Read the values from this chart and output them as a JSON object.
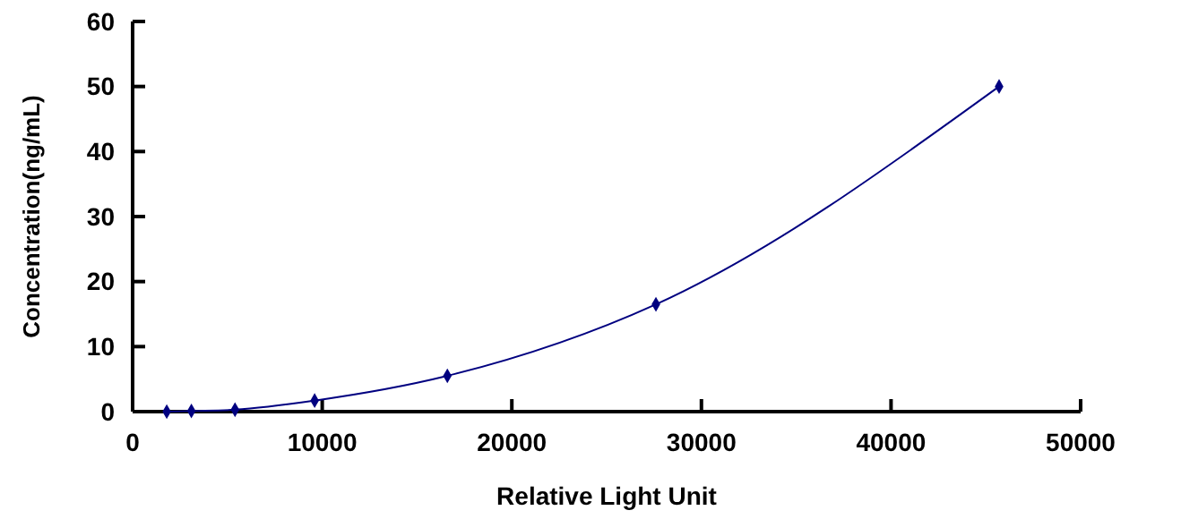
{
  "chart_data": {
    "type": "line",
    "xlabel": "Relative Light Unit",
    "ylabel": "Concentration(ng/mL)",
    "x": [
      1800,
      3100,
      5400,
      9600,
      16600,
      27600,
      45700
    ],
    "series": [
      {
        "color": "#000080",
        "values": [
          0,
          0.1,
          0.3,
          1.7,
          5.5,
          16.5,
          50
        ]
      }
    ],
    "xlim": [
      0,
      50000
    ],
    "xticks": [
      0,
      10000,
      20000,
      30000,
      40000,
      50000
    ],
    "ylim": [
      0,
      60
    ],
    "yticks": [
      0,
      10,
      20,
      30,
      40,
      50,
      60
    ],
    "marker": "diamond",
    "line_style": "solid",
    "grid": false
  }
}
